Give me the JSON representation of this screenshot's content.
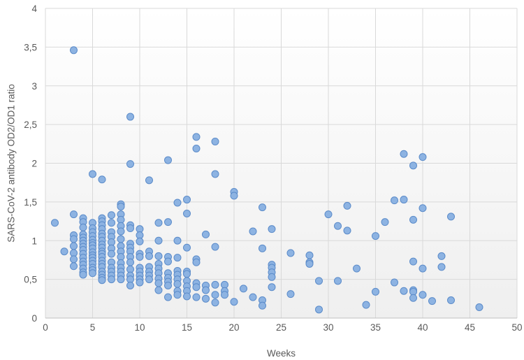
{
  "chart_data": {
    "type": "scatter",
    "title": "",
    "xlabel": "Weeks",
    "ylabel": "SARS-CoV-2 antibody OD2/OD1 ratio",
    "xlim": [
      0,
      50
    ],
    "ylim": [
      0,
      4
    ],
    "x_ticks": [
      0,
      5,
      10,
      15,
      20,
      25,
      30,
      35,
      40,
      45,
      50
    ],
    "y_ticks": [
      {
        "value": 0,
        "label": "0"
      },
      {
        "value": 0.5,
        "label": "0,5"
      },
      {
        "value": 1,
        "label": "1"
      },
      {
        "value": 1.5,
        "label": "1,5"
      },
      {
        "value": 2,
        "label": "2"
      },
      {
        "value": 2.5,
        "label": "2,5"
      },
      {
        "value": 3,
        "label": "3"
      },
      {
        "value": 3.5,
        "label": "3,5"
      },
      {
        "value": 4,
        "label": "4"
      }
    ],
    "grid": "horizontal",
    "legend": "none",
    "colors": {
      "marker_fill": "#8db3e2",
      "marker_stroke": "#5b8bc9",
      "grid": "#d9d9d9",
      "axis": "#bfbfbf",
      "text": "#595959",
      "plot_bg_top": "#ffffff",
      "plot_bg_bottom": "#efefef"
    },
    "series": [
      {
        "points": [
          [
            1,
            1.23
          ],
          [
            2,
            0.86
          ],
          [
            3,
            3.46
          ],
          [
            3,
            1.34
          ],
          [
            3,
            1.07
          ],
          [
            3,
            1.02
          ],
          [
            3,
            0.93
          ],
          [
            3,
            0.84
          ],
          [
            3,
            0.76
          ],
          [
            3,
            0.67
          ],
          [
            4,
            1.29
          ],
          [
            4,
            1.24
          ],
          [
            4,
            1.17
          ],
          [
            4,
            1.08
          ],
          [
            4,
            1.04
          ],
          [
            4,
            1.0
          ],
          [
            4,
            0.96
          ],
          [
            4,
            0.92
          ],
          [
            4,
            0.88
          ],
          [
            4,
            0.83
          ],
          [
            4,
            0.78
          ],
          [
            4,
            0.73
          ],
          [
            4,
            0.69
          ],
          [
            4,
            0.64
          ],
          [
            4,
            0.59
          ],
          [
            4,
            0.56
          ],
          [
            5,
            1.86
          ],
          [
            5,
            1.23
          ],
          [
            5,
            1.16
          ],
          [
            5,
            1.11
          ],
          [
            5,
            1.06
          ],
          [
            5,
            1.01
          ],
          [
            5,
            0.97
          ],
          [
            5,
            0.94
          ],
          [
            5,
            0.9
          ],
          [
            5,
            0.85
          ],
          [
            5,
            0.81
          ],
          [
            5,
            0.78
          ],
          [
            5,
            0.74
          ],
          [
            5,
            0.7
          ],
          [
            5,
            0.65
          ],
          [
            5,
            0.62
          ],
          [
            5,
            0.58
          ],
          [
            6,
            1.79
          ],
          [
            6,
            1.29
          ],
          [
            6,
            1.25
          ],
          [
            6,
            1.2
          ],
          [
            6,
            1.15
          ],
          [
            6,
            1.09
          ],
          [
            6,
            1.05
          ],
          [
            6,
            1.0
          ],
          [
            6,
            0.95
          ],
          [
            6,
            0.91
          ],
          [
            6,
            0.86
          ],
          [
            6,
            0.83
          ],
          [
            6,
            0.79
          ],
          [
            6,
            0.74
          ],
          [
            6,
            0.7
          ],
          [
            6,
            0.66
          ],
          [
            6,
            0.6
          ],
          [
            6,
            0.56
          ],
          [
            6,
            0.52
          ],
          [
            6,
            0.49
          ],
          [
            7,
            1.33
          ],
          [
            7,
            1.23
          ],
          [
            7,
            1.11
          ],
          [
            7,
            1.05
          ],
          [
            7,
            0.98
          ],
          [
            7,
            0.9
          ],
          [
            7,
            0.83
          ],
          [
            7,
            0.72
          ],
          [
            7,
            0.65
          ],
          [
            7,
            0.6
          ],
          [
            7,
            0.55
          ],
          [
            7,
            0.5
          ],
          [
            8,
            1.47
          ],
          [
            8,
            1.44
          ],
          [
            8,
            1.34
          ],
          [
            8,
            1.27
          ],
          [
            8,
            1.19
          ],
          [
            8,
            1.12
          ],
          [
            8,
            1.02
          ],
          [
            8,
            0.93
          ],
          [
            8,
            0.86
          ],
          [
            8,
            0.79
          ],
          [
            8,
            0.71
          ],
          [
            8,
            0.65
          ],
          [
            8,
            0.6
          ],
          [
            8,
            0.55
          ],
          [
            8,
            0.5
          ],
          [
            9,
            2.6
          ],
          [
            9,
            1.99
          ],
          [
            9,
            1.2
          ],
          [
            9,
            1.16
          ],
          [
            9,
            0.96
          ],
          [
            9,
            0.91
          ],
          [
            9,
            0.86
          ],
          [
            9,
            0.79
          ],
          [
            9,
            0.72
          ],
          [
            9,
            0.63
          ],
          [
            9,
            0.55
          ],
          [
            9,
            0.5
          ],
          [
            9,
            0.42
          ],
          [
            10,
            1.15
          ],
          [
            10,
            1.07
          ],
          [
            10,
            0.99
          ],
          [
            10,
            0.83
          ],
          [
            10,
            0.79
          ],
          [
            10,
            0.65
          ],
          [
            10,
            0.6
          ],
          [
            10,
            0.55
          ],
          [
            10,
            0.5
          ],
          [
            10,
            0.46
          ],
          [
            11,
            1.78
          ],
          [
            11,
            0.86
          ],
          [
            11,
            0.8
          ],
          [
            11,
            0.66
          ],
          [
            11,
            0.6
          ],
          [
            11,
            0.55
          ],
          [
            11,
            0.5
          ],
          [
            12,
            1.23
          ],
          [
            12,
            1.0
          ],
          [
            12,
            0.8
          ],
          [
            12,
            0.7
          ],
          [
            12,
            0.64
          ],
          [
            12,
            0.58
          ],
          [
            12,
            0.51
          ],
          [
            12,
            0.45
          ],
          [
            12,
            0.36
          ],
          [
            13,
            2.04
          ],
          [
            13,
            1.24
          ],
          [
            13,
            0.79
          ],
          [
            13,
            0.73
          ],
          [
            13,
            0.58
          ],
          [
            13,
            0.52
          ],
          [
            13,
            0.47
          ],
          [
            13,
            0.42
          ],
          [
            13,
            0.27
          ],
          [
            14,
            1.49
          ],
          [
            14,
            1.0
          ],
          [
            14,
            0.78
          ],
          [
            14,
            0.61
          ],
          [
            14,
            0.56
          ],
          [
            14,
            0.5
          ],
          [
            14,
            0.44
          ],
          [
            14,
            0.35
          ],
          [
            14,
            0.3
          ],
          [
            15,
            1.53
          ],
          [
            15,
            1.35
          ],
          [
            15,
            0.91
          ],
          [
            15,
            0.6
          ],
          [
            15,
            0.57
          ],
          [
            15,
            0.48
          ],
          [
            15,
            0.41
          ],
          [
            15,
            0.35
          ],
          [
            15,
            0.28
          ],
          [
            16,
            2.34
          ],
          [
            16,
            2.19
          ],
          [
            16,
            0.76
          ],
          [
            16,
            0.72
          ],
          [
            16,
            0.45
          ],
          [
            16,
            0.4
          ],
          [
            16,
            0.27
          ],
          [
            17,
            1.08
          ],
          [
            17,
            0.42
          ],
          [
            17,
            0.36
          ],
          [
            17,
            0.25
          ],
          [
            18,
            2.28
          ],
          [
            18,
            1.86
          ],
          [
            18,
            0.92
          ],
          [
            18,
            0.43
          ],
          [
            18,
            0.3
          ],
          [
            18,
            0.2
          ],
          [
            19,
            0.43
          ],
          [
            19,
            0.35
          ],
          [
            19,
            0.3
          ],
          [
            20,
            1.63
          ],
          [
            20,
            1.58
          ],
          [
            20,
            0.21
          ],
          [
            21,
            0.38
          ],
          [
            22,
            1.12
          ],
          [
            22,
            0.27
          ],
          [
            23,
            1.43
          ],
          [
            23,
            0.9
          ],
          [
            23,
            0.23
          ],
          [
            23,
            0.16
          ],
          [
            24,
            1.15
          ],
          [
            24,
            0.69
          ],
          [
            24,
            0.65
          ],
          [
            24,
            0.59
          ],
          [
            24,
            0.53
          ],
          [
            24,
            0.4
          ],
          [
            26,
            0.84
          ],
          [
            26,
            0.31
          ],
          [
            28,
            0.81
          ],
          [
            28,
            0.72
          ],
          [
            28,
            0.7
          ],
          [
            29,
            0.48
          ],
          [
            29,
            0.11
          ],
          [
            30,
            1.34
          ],
          [
            31,
            1.19
          ],
          [
            31,
            0.48
          ],
          [
            32,
            1.45
          ],
          [
            32,
            1.13
          ],
          [
            33,
            0.64
          ],
          [
            34,
            0.17
          ],
          [
            35,
            1.06
          ],
          [
            35,
            0.34
          ],
          [
            36,
            1.24
          ],
          [
            37,
            1.52
          ],
          [
            37,
            0.46
          ],
          [
            38,
            2.12
          ],
          [
            38,
            1.53
          ],
          [
            38,
            0.35
          ],
          [
            39,
            1.97
          ],
          [
            39,
            1.27
          ],
          [
            39,
            0.73
          ],
          [
            39,
            0.36
          ],
          [
            39,
            0.34
          ],
          [
            39,
            0.26
          ],
          [
            40,
            2.08
          ],
          [
            40,
            1.42
          ],
          [
            40,
            0.64
          ],
          [
            40,
            0.3
          ],
          [
            41,
            0.22
          ],
          [
            42,
            0.8
          ],
          [
            42,
            0.66
          ],
          [
            43,
            1.31
          ],
          [
            43,
            0.23
          ],
          [
            46,
            0.14
          ]
        ]
      }
    ]
  }
}
